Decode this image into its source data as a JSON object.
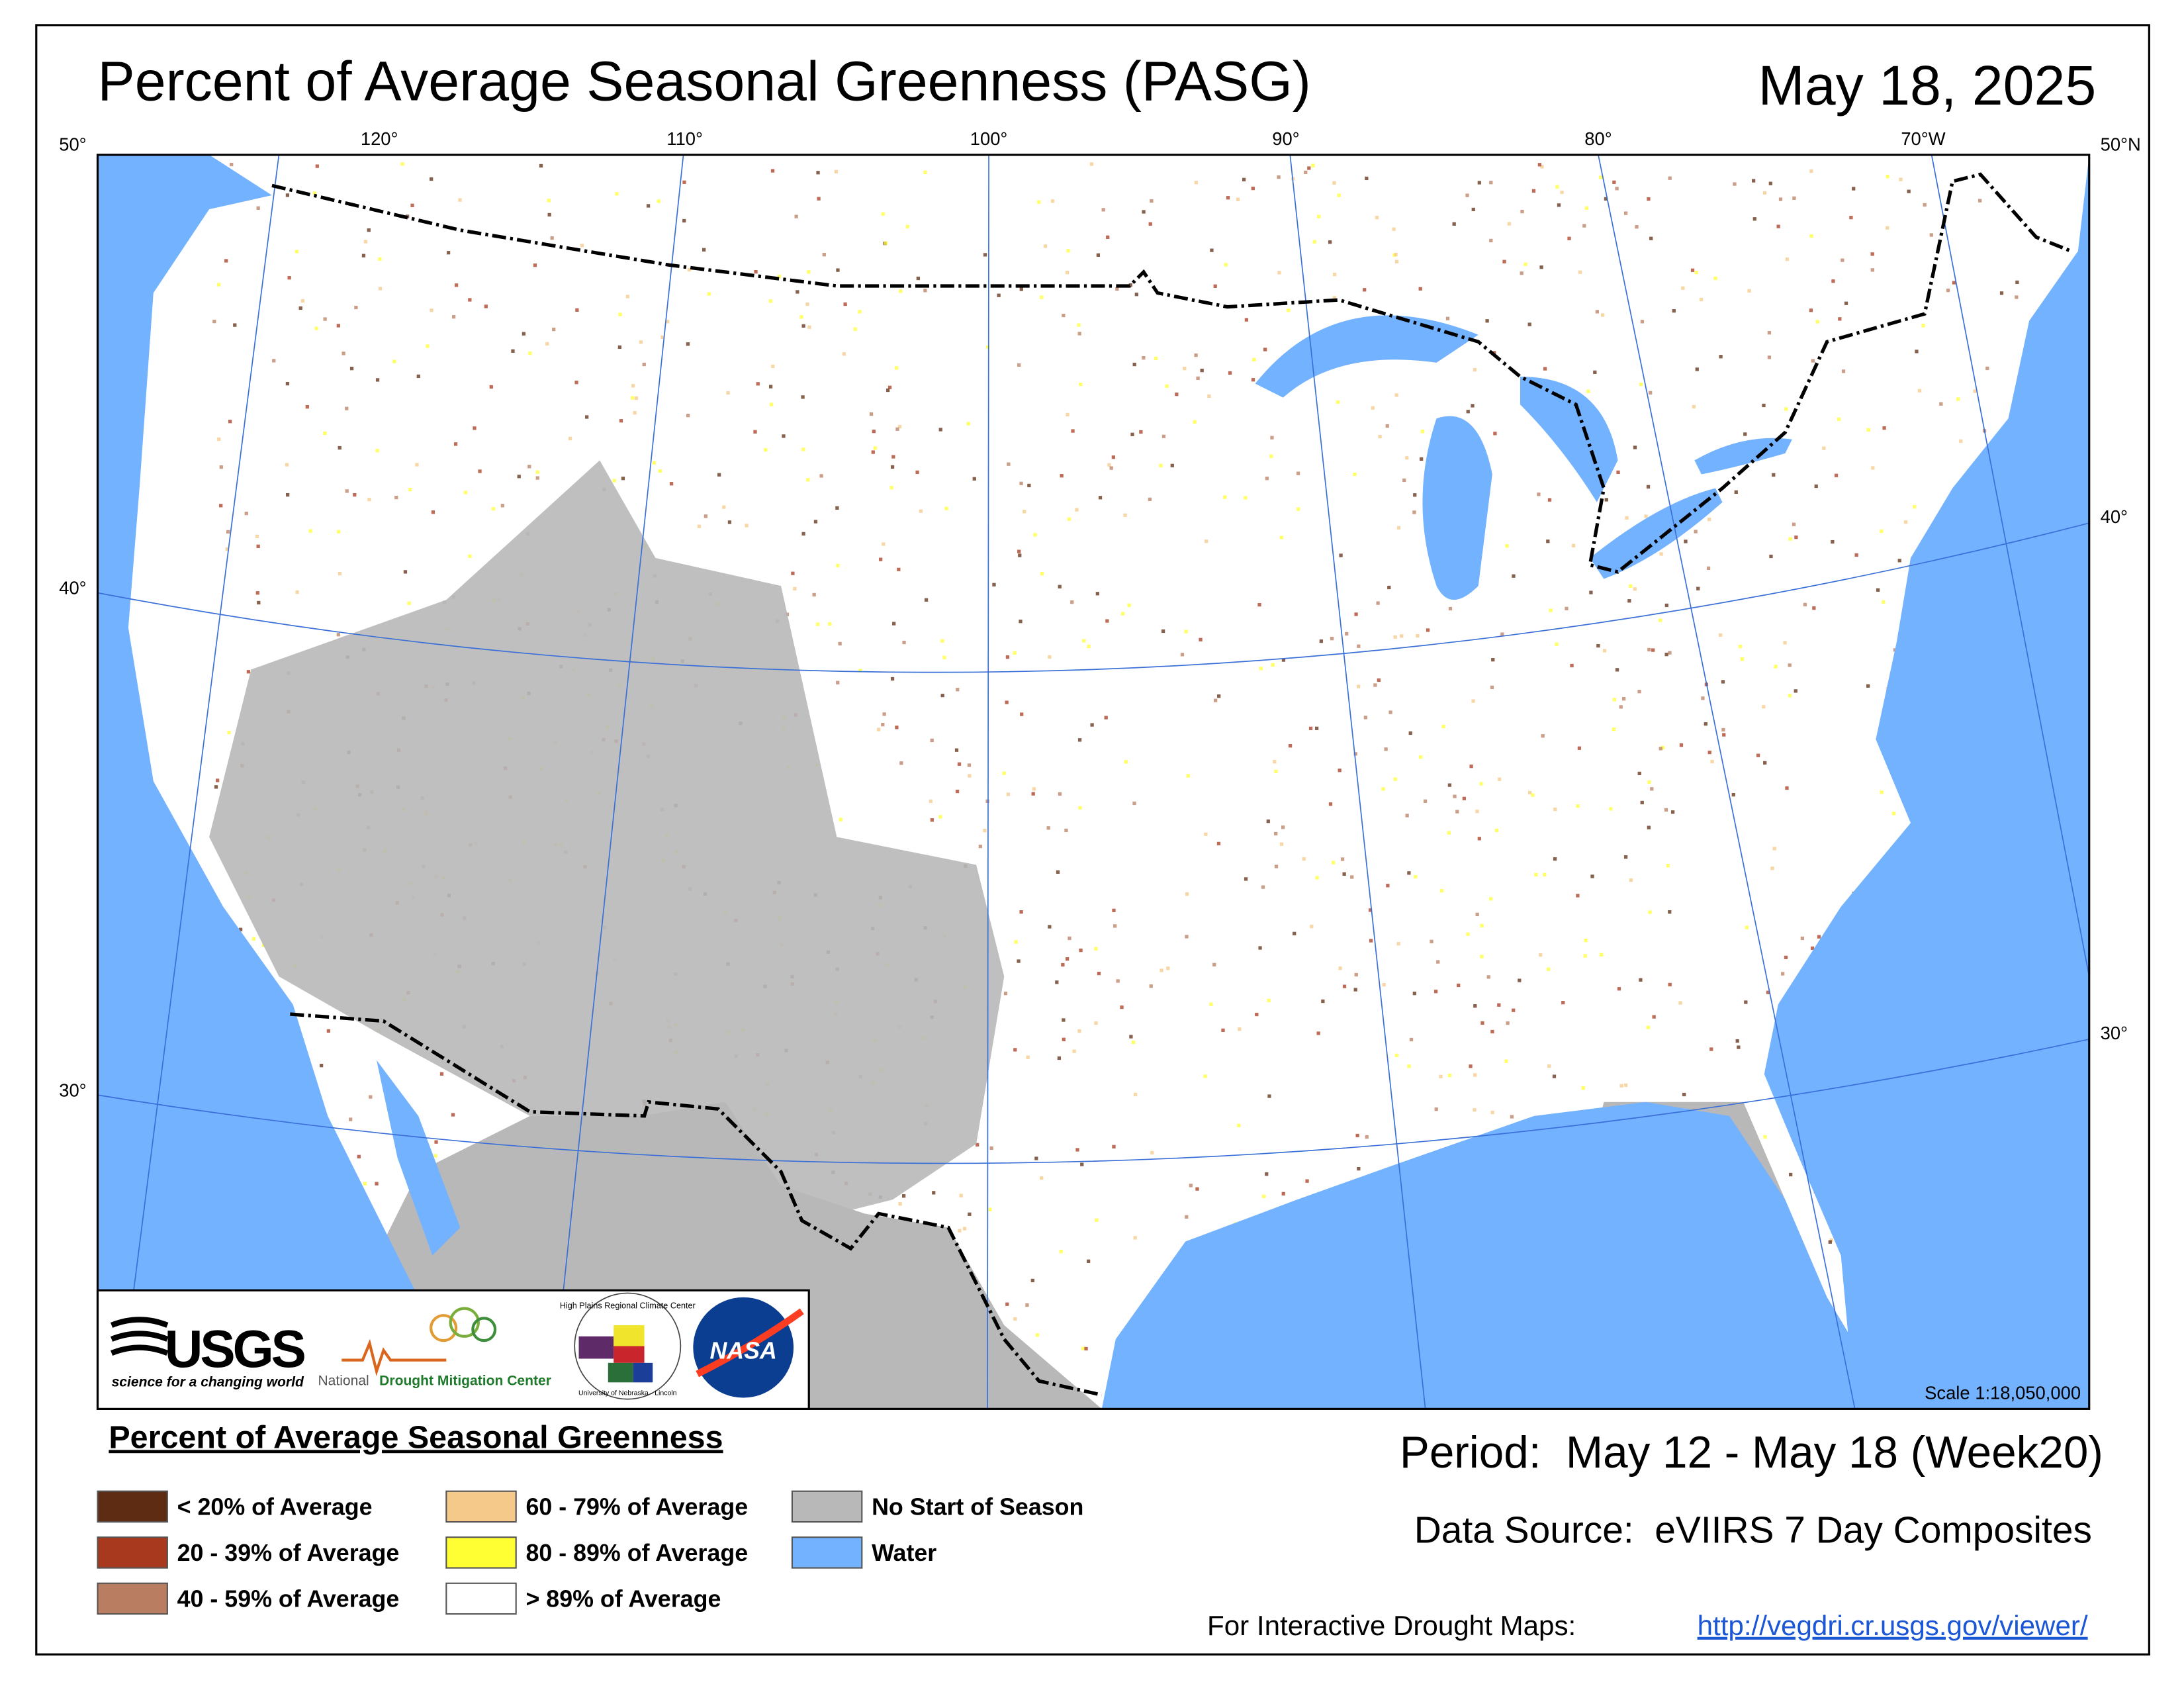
{
  "header": {
    "title": "Percent of Average Seasonal Greenness (PASG)",
    "date": "May 18, 2025"
  },
  "map": {
    "longitude_labels": [
      "120°",
      "110°",
      "100°",
      "90°",
      "80°",
      "70°W"
    ],
    "latitude_labels_left": [
      "50°",
      "40°",
      "30°"
    ],
    "latitude_labels_right": [
      "50°N",
      "40°",
      "30°"
    ],
    "scale": "Scale 1:18,050,000"
  },
  "logos": {
    "usgs": "USGS",
    "usgs_tagline": "science for a changing world",
    "ndmc_prefix": "National",
    "ndmc": "Drought Mitigation Center",
    "hprcc": "High Plains Regional Climate Center",
    "unl": "University of Nebraska - Lincoln",
    "nasa": "NASA"
  },
  "legend": {
    "title": "Percent of Average Seasonal Greenness",
    "items": [
      {
        "label": "< 20% of Average",
        "color": "#5e2c12"
      },
      {
        "label": "20 - 39% of Average",
        "color": "#a8391f"
      },
      {
        "label": "40 - 59% of Average",
        "color": "#b97d61"
      },
      {
        "label": "60 - 79% of Average",
        "color": "#f5c98a"
      },
      {
        "label": "80 - 89% of Average",
        "color": "#ffff33"
      },
      {
        "label": "> 89% of Average",
        "color": "#ffffff"
      },
      {
        "label": "No Start of Season",
        "color": "#b8b8b8"
      },
      {
        "label": "Water",
        "color": "#73b2ff"
      }
    ]
  },
  "footer": {
    "period": "Period:  May 12 - May 18 (Week20)",
    "source": "Data Source:  eVIIRS 7 Day Composites",
    "interactive": "For Interactive Drought Maps:",
    "link": "http://vegdri.cr.usgs.gov/viewer/"
  }
}
